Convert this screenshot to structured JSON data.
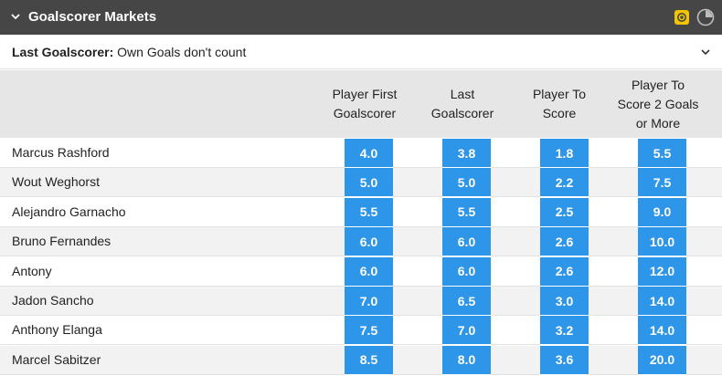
{
  "header": {
    "title": "Goalscorer Markets",
    "icons": [
      "chevron-down-icon",
      "cashout-icon",
      "clock-icon"
    ],
    "bg_color": "#464646"
  },
  "subbar": {
    "label_bold": "Last Goalscorer:",
    "label_rest": " Own Goals don't count"
  },
  "columns": [
    {
      "l1": "Player First",
      "l2": "Goalscorer",
      "l3": ""
    },
    {
      "l1": "Last",
      "l2": "Goalscorer",
      "l3": ""
    },
    {
      "l1": "Player To",
      "l2": "Score",
      "l3": ""
    },
    {
      "l1": "Player To",
      "l2": "Score 2 Goals",
      "l3": "or More"
    }
  ],
  "accent_color": "#2e96e8",
  "players": [
    {
      "name": "Marcus Rashford",
      "odds": [
        "4.0",
        "3.8",
        "1.8",
        "5.5"
      ]
    },
    {
      "name": "Wout Weghorst",
      "odds": [
        "5.0",
        "5.0",
        "2.2",
        "7.5"
      ]
    },
    {
      "name": "Alejandro Garnacho",
      "odds": [
        "5.5",
        "5.5",
        "2.5",
        "9.0"
      ]
    },
    {
      "name": "Bruno Fernandes",
      "odds": [
        "6.0",
        "6.0",
        "2.6",
        "10.0"
      ]
    },
    {
      "name": "Antony",
      "odds": [
        "6.0",
        "6.0",
        "2.6",
        "12.0"
      ]
    },
    {
      "name": "Jadon Sancho",
      "odds": [
        "7.0",
        "6.5",
        "3.0",
        "14.0"
      ]
    },
    {
      "name": "Anthony Elanga",
      "odds": [
        "7.5",
        "7.0",
        "3.2",
        "14.0"
      ]
    },
    {
      "name": "Marcel Sabitzer",
      "odds": [
        "8.5",
        "8.0",
        "3.6",
        "20.0"
      ]
    }
  ]
}
